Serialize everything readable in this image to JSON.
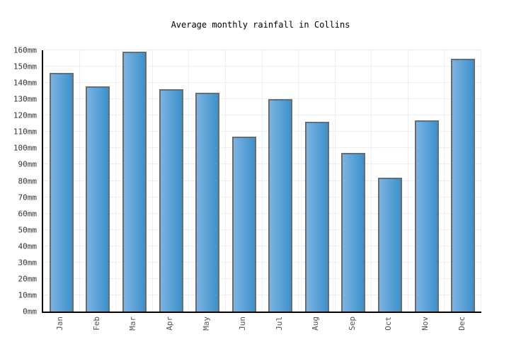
{
  "title": "Average monthly rainfall in Collins",
  "chart_data": {
    "type": "bar",
    "categories": [
      "Jan",
      "Feb",
      "Mar",
      "Apr",
      "May",
      "Jun",
      "Jul",
      "Aug",
      "Sep",
      "Oct",
      "Nov",
      "Dec"
    ],
    "values": [
      146,
      138,
      159,
      136,
      134,
      107,
      130,
      116,
      97,
      82,
      117,
      155
    ],
    "unit": "mm",
    "title": "Average monthly rainfall in Collins",
    "xlabel": "",
    "ylabel": "",
    "ylim": [
      0,
      160
    ],
    "ytick_step": 10,
    "yticks": [
      "0mm",
      "10mm",
      "20mm",
      "30mm",
      "40mm",
      "50mm",
      "60mm",
      "70mm",
      "80mm",
      "90mm",
      "100mm",
      "110mm",
      "120mm",
      "130mm",
      "140mm",
      "150mm",
      "160mm"
    ],
    "grid": true,
    "legend": "none"
  },
  "colors": {
    "bar_fill_left": "#7cb3e3",
    "bar_fill_right": "#3d91c9",
    "bar_border": "#6c6c6c",
    "gridline": "#ededed",
    "axis": "#000000",
    "y_label": "#333333",
    "x_label": "#555555",
    "background": "#ffffff"
  }
}
